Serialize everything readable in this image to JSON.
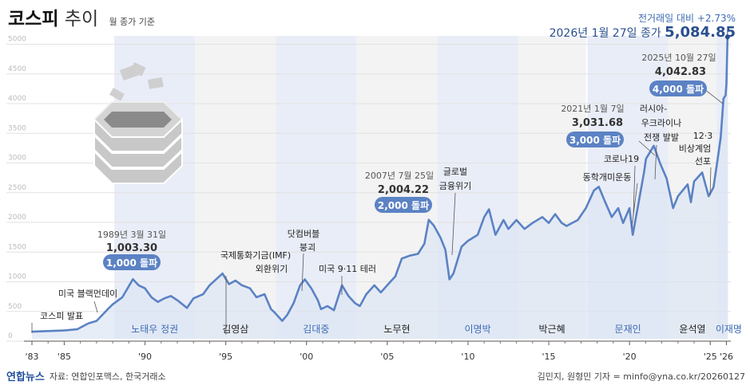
{
  "header": {
    "title_bold": "코스피",
    "title_light": "추이",
    "subtitle": "월 종가 기준",
    "change_text": "전거래일 대비 +2.73%",
    "close_label": "2026년 1월 27일 종가",
    "close_value": "5,084.85"
  },
  "footer": {
    "logo": "연합뉴스",
    "source": "자료: 연합인포맥스, 한국거래소",
    "credit": "김민지, 원형민 기자 = minfo@yna.co.kr/20260127"
  },
  "colors": {
    "line": "#5b82c4",
    "area": "#dde6f4",
    "band_blue": "#e3e9f5",
    "band_grey": "#f0f0f0",
    "pill": "#5b82c4",
    "grid": "#e2e2e2"
  },
  "chart_data": {
    "type": "line",
    "title": "코스피 추이",
    "xlabel": "",
    "ylabel": "",
    "xlim": [
      1983,
      2026.1
    ],
    "ylim": [
      0,
      5000
    ],
    "yticks": [
      "0",
      "500",
      "1000",
      "1500",
      "2000",
      "2500",
      "3000",
      "3500",
      "4000",
      "4500",
      "5000"
    ],
    "xticks": [
      {
        "v": 1983,
        "label": "'83"
      },
      {
        "v": 1985,
        "label": "'85"
      },
      {
        "v": 1990,
        "label": "'90"
      },
      {
        "v": 1995,
        "label": "'95"
      },
      {
        "v": 2000,
        "label": "'00"
      },
      {
        "v": 2005,
        "label": "'05"
      },
      {
        "v": 2010,
        "label": "'10"
      },
      {
        "v": 2015,
        "label": "'15"
      },
      {
        "v": 2020,
        "label": "'20"
      },
      {
        "v": 2025,
        "label": "'25"
      },
      {
        "v": 2026,
        "label": "'26"
      }
    ],
    "grid": true,
    "series": [
      {
        "name": "코스피",
        "x": [
          1983,
          1984,
          1985,
          1985.8,
          1986.5,
          1987,
          1987.7,
          1988,
          1988.6,
          1989.25,
          1989.6,
          1990,
          1990.4,
          1990.8,
          1991.2,
          1991.6,
          1992,
          1992.6,
          1993,
          1993.6,
          1994,
          1994.8,
          1995.2,
          1995.6,
          1996,
          1996.5,
          1996.9,
          1997.4,
          1997.8,
          1998,
          1998.5,
          1998.8,
          1999.2,
          1999.6,
          1999.9,
          2000.3,
          2000.7,
          2000.9,
          2001.3,
          2001.7,
          2002.2,
          2002.6,
          2003,
          2003.3,
          2003.7,
          2004.2,
          2004.6,
          2005,
          2005.5,
          2005.9,
          2006.4,
          2006.9,
          2007.3,
          2007.57,
          2007.9,
          2008.3,
          2008.6,
          2008.85,
          2009.1,
          2009.6,
          2010,
          2010.6,
          2011,
          2011.3,
          2011.7,
          2012.2,
          2012.5,
          2013,
          2013.5,
          2014,
          2014.6,
          2015,
          2015.4,
          2015.8,
          2016.1,
          2016.8,
          2017.3,
          2017.8,
          2018.1,
          2018.5,
          2018.9,
          2019.3,
          2019.6,
          2020,
          2020.2,
          2020.6,
          2020.9,
          2021.02,
          2021.5,
          2021.9,
          2022.3,
          2022.7,
          2023,
          2023.6,
          2023.8,
          2024,
          2024.5,
          2024.9,
          2025.2,
          2025.5,
          2025.65,
          2025.82,
          2025.95,
          2026,
          2026.07
        ],
        "y": [
          120,
          130,
          140,
          160,
          260,
          300,
          500,
          580,
          700,
          1003,
          900,
          850,
          700,
          620,
          680,
          720,
          650,
          520,
          680,
          750,
          900,
          1100,
          920,
          980,
          900,
          850,
          700,
          750,
          500,
          450,
          300,
          400,
          600,
          900,
          1000,
          850,
          650,
          500,
          550,
          480,
          900,
          720,
          600,
          550,
          750,
          900,
          780,
          900,
          1050,
          1350,
          1400,
          1430,
          1600,
          2004,
          1900,
          1700,
          1500,
          1000,
          1100,
          1550,
          1650,
          1750,
          2050,
          2180,
          1750,
          2000,
          1850,
          2000,
          1850,
          1950,
          2050,
          1950,
          2100,
          1950,
          1900,
          2000,
          2200,
          2500,
          2560,
          2300,
          2050,
          2200,
          1950,
          2200,
          1750,
          2350,
          2800,
          3031,
          3250,
          2950,
          2700,
          2200,
          2400,
          2600,
          2300,
          2650,
          2800,
          2400,
          2550,
          3100,
          3400,
          4042,
          4100,
          4300,
          5084
        ]
      }
    ],
    "eras": [
      {
        "name": "노태우 정권",
        "from": 1988.1,
        "to": 1993.1,
        "shade": "blue"
      },
      {
        "name": "김영삼",
        "from": 1993.1,
        "to": 1998.1,
        "shade": "grey"
      },
      {
        "name": "김대중",
        "from": 1998.1,
        "to": 2003.1,
        "shade": "blue"
      },
      {
        "name": "노무현",
        "from": 2003.1,
        "to": 2008.1,
        "shade": "grey"
      },
      {
        "name": "이명박",
        "from": 2008.1,
        "to": 2013.1,
        "shade": "blue"
      },
      {
        "name": "박근혜",
        "from": 2013.1,
        "to": 2017.3,
        "shade": "grey"
      },
      {
        "name": "문재인",
        "from": 2017.4,
        "to": 2022.4,
        "shade": "blue"
      },
      {
        "name": "윤석열",
        "from": 2022.4,
        "to": 2025.4,
        "shade": "grey"
      },
      {
        "name": "이재명",
        "from": 2025.4,
        "to": 2026.1,
        "shade": "blue"
      }
    ],
    "annotations": [
      {
        "text": "코스피 발표",
        "kind": "event"
      },
      {
        "text": "미국 블랙먼데이",
        "kind": "event"
      },
      {
        "text": "1989년 3월 31일",
        "kind": "date"
      },
      {
        "text": "1,003.30",
        "kind": "value"
      },
      {
        "text": "1,000 돌파",
        "kind": "pill"
      },
      {
        "text": "국제통화기금(IMF)",
        "kind": "event"
      },
      {
        "text": "외환위기",
        "kind": "event"
      },
      {
        "text": "닷컴버블",
        "kind": "event"
      },
      {
        "text": "붕괴",
        "kind": "event"
      },
      {
        "text": "미국 9·11 테러",
        "kind": "event"
      },
      {
        "text": "2007년 7월 25일",
        "kind": "date"
      },
      {
        "text": "2,004.22",
        "kind": "value"
      },
      {
        "text": "2,000 돌파",
        "kind": "pill"
      },
      {
        "text": "글로벌",
        "kind": "event"
      },
      {
        "text": "금융위기",
        "kind": "event"
      },
      {
        "text": "2021년 1월 7일",
        "kind": "date"
      },
      {
        "text": "3,031.68",
        "kind": "value"
      },
      {
        "text": "3,000 돌파",
        "kind": "pill"
      },
      {
        "text": "코로나19",
        "kind": "event"
      },
      {
        "text": "동학개미운동",
        "kind": "event"
      },
      {
        "text": "러시아-",
        "kind": "event"
      },
      {
        "text": "우크라이나",
        "kind": "event"
      },
      {
        "text": "전쟁 발발",
        "kind": "event"
      },
      {
        "text": "12·3",
        "kind": "event"
      },
      {
        "text": "비상계엄",
        "kind": "event"
      },
      {
        "text": "선포",
        "kind": "event"
      },
      {
        "text": "2025년 10월 27일",
        "kind": "date"
      },
      {
        "text": "4,042.83",
        "kind": "value"
      },
      {
        "text": "4,000 돌파",
        "kind": "pill"
      }
    ]
  }
}
